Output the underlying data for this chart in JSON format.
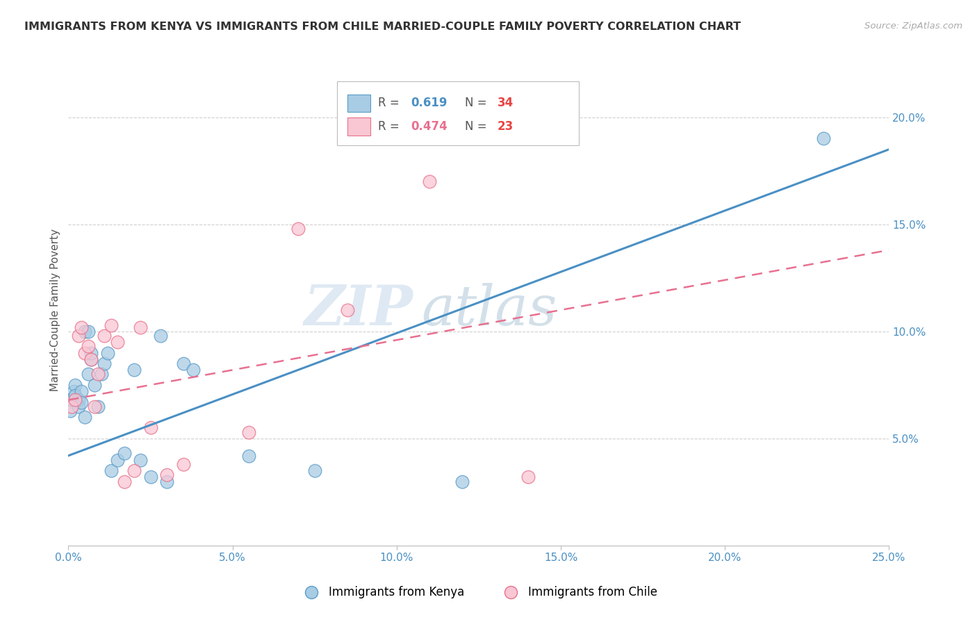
{
  "title": "IMMIGRANTS FROM KENYA VS IMMIGRANTS FROM CHILE MARRIED-COUPLE FAMILY POVERTY CORRELATION CHART",
  "source": "Source: ZipAtlas.com",
  "ylabel": "Married-Couple Family Poverty",
  "xlim": [
    0,
    0.25
  ],
  "ylim": [
    0,
    0.22
  ],
  "xticks": [
    0.0,
    0.05,
    0.1,
    0.15,
    0.2,
    0.25
  ],
  "yticks": [
    0.0,
    0.05,
    0.1,
    0.15,
    0.2
  ],
  "xtick_labels": [
    "0.0%",
    "5.0%",
    "10.0%",
    "15.0%",
    "20.0%",
    "25.0%"
  ],
  "ytick_labels": [
    "",
    "5.0%",
    "10.0%",
    "15.0%",
    "20.0%"
  ],
  "kenya_color": "#a8cce4",
  "chile_color": "#f9c6d4",
  "kenya_edge_color": "#5b9bc8",
  "chile_edge_color": "#e8708a",
  "kenya_line_color": "#4a90c4",
  "chile_line_color": "#e87090",
  "R_kenya": "0.619",
  "N_kenya": "34",
  "R_chile": "0.474",
  "N_chile": "23",
  "kenya_R_color": "#4a90c4",
  "chile_R_color": "#e87090",
  "N_color": "#e84444",
  "kenya_x": [
    0.0005,
    0.001,
    0.0015,
    0.002,
    0.002,
    0.003,
    0.003,
    0.004,
    0.004,
    0.005,
    0.005,
    0.006,
    0.006,
    0.007,
    0.007,
    0.008,
    0.009,
    0.01,
    0.011,
    0.012,
    0.013,
    0.015,
    0.017,
    0.02,
    0.022,
    0.025,
    0.028,
    0.03,
    0.035,
    0.038,
    0.055,
    0.075,
    0.12,
    0.23
  ],
  "kenya_y": [
    0.063,
    0.068,
    0.072,
    0.075,
    0.07,
    0.068,
    0.065,
    0.072,
    0.067,
    0.06,
    0.1,
    0.1,
    0.08,
    0.087,
    0.09,
    0.075,
    0.065,
    0.08,
    0.085,
    0.09,
    0.035,
    0.04,
    0.043,
    0.082,
    0.04,
    0.032,
    0.098,
    0.03,
    0.085,
    0.082,
    0.042,
    0.035,
    0.03,
    0.19
  ],
  "chile_x": [
    0.001,
    0.002,
    0.003,
    0.004,
    0.005,
    0.006,
    0.007,
    0.008,
    0.009,
    0.011,
    0.013,
    0.015,
    0.017,
    0.02,
    0.022,
    0.025,
    0.03,
    0.035,
    0.055,
    0.07,
    0.085,
    0.11,
    0.14
  ],
  "chile_y": [
    0.065,
    0.068,
    0.098,
    0.102,
    0.09,
    0.093,
    0.087,
    0.065,
    0.08,
    0.098,
    0.103,
    0.095,
    0.03,
    0.035,
    0.102,
    0.055,
    0.033,
    0.038,
    0.053,
    0.148,
    0.11,
    0.17,
    0.032
  ],
  "kenya_line_x0": 0.0,
  "kenya_line_y0": 0.042,
  "kenya_line_x1": 0.25,
  "kenya_line_y1": 0.185,
  "chile_line_x0": 0.0,
  "chile_line_y0": 0.068,
  "chile_line_x1": 0.25,
  "chile_line_y1": 0.138,
  "watermark_zip": "ZIP",
  "watermark_atlas": "atlas",
  "background_color": "#ffffff",
  "grid_color": "#d0d0d0",
  "legend_kenya_label": "Immigrants from Kenya",
  "legend_chile_label": "Immigrants from Chile"
}
